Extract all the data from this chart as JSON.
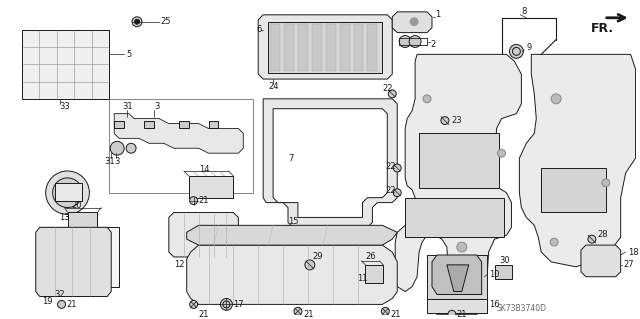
{
  "bg_color": "#ffffff",
  "line_color": "#1a1a1a",
  "diagram_code": "SK73B3740D",
  "label_fs": 6.0,
  "lw": 0.7
}
